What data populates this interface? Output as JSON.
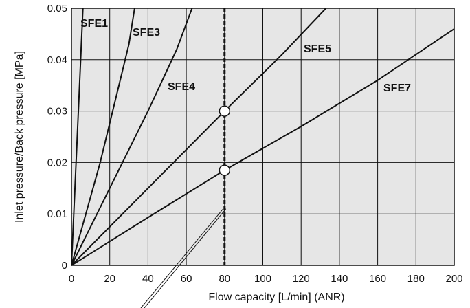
{
  "chart_data": {
    "type": "line",
    "xlabel": "Flow capacity [L/min] (ANR)",
    "ylabel": "Inlet pressure/Back pressure [MPa]",
    "xlim": [
      0,
      200
    ],
    "ylim": [
      0,
      0.05
    ],
    "x_ticks": [
      0,
      20,
      40,
      60,
      80,
      100,
      120,
      140,
      160,
      180,
      200
    ],
    "y_ticks": [
      0,
      0.01,
      0.02,
      0.03,
      0.04,
      0.05
    ],
    "x_tick_labels": [
      "0",
      "20",
      "40",
      "60",
      "80",
      "100",
      "120",
      "140",
      "160",
      "180",
      "200"
    ],
    "y_tick_labels": [
      "0",
      "0.01",
      "0.02",
      "0.03",
      "0.04",
      "0.05"
    ],
    "grid": true,
    "background": "#e6e6e6",
    "series": [
      {
        "name": "SFE1",
        "x": [
          0,
          3,
          6
        ],
        "y": [
          0,
          0.025,
          0.05
        ]
      },
      {
        "name": "SFE3",
        "x": [
          0,
          15,
          30,
          33
        ],
        "y": [
          0,
          0.02,
          0.043,
          0.05
        ]
      },
      {
        "name": "SFE4",
        "x": [
          0,
          20,
          40,
          55,
          63
        ],
        "y": [
          0,
          0.015,
          0.03,
          0.042,
          0.05
        ]
      },
      {
        "name": "SFE5",
        "x": [
          0,
          40,
          80,
          110,
          133
        ],
        "y": [
          0,
          0.015,
          0.03,
          0.041,
          0.05
        ]
      },
      {
        "name": "SFE7",
        "x": [
          0,
          40,
          80,
          120,
          160,
          200
        ],
        "y": [
          0,
          0.0093,
          0.0185,
          0.027,
          0.036,
          0.046
        ]
      }
    ],
    "reference_line": {
      "x": 80,
      "y_from": 0,
      "y_to": 0.05,
      "style": "dashed"
    },
    "markers": [
      {
        "x": 80,
        "y": 0.03,
        "series": "SFE5"
      },
      {
        "x": 80,
        "y": 0.0185,
        "series": "SFE7"
      }
    ]
  }
}
